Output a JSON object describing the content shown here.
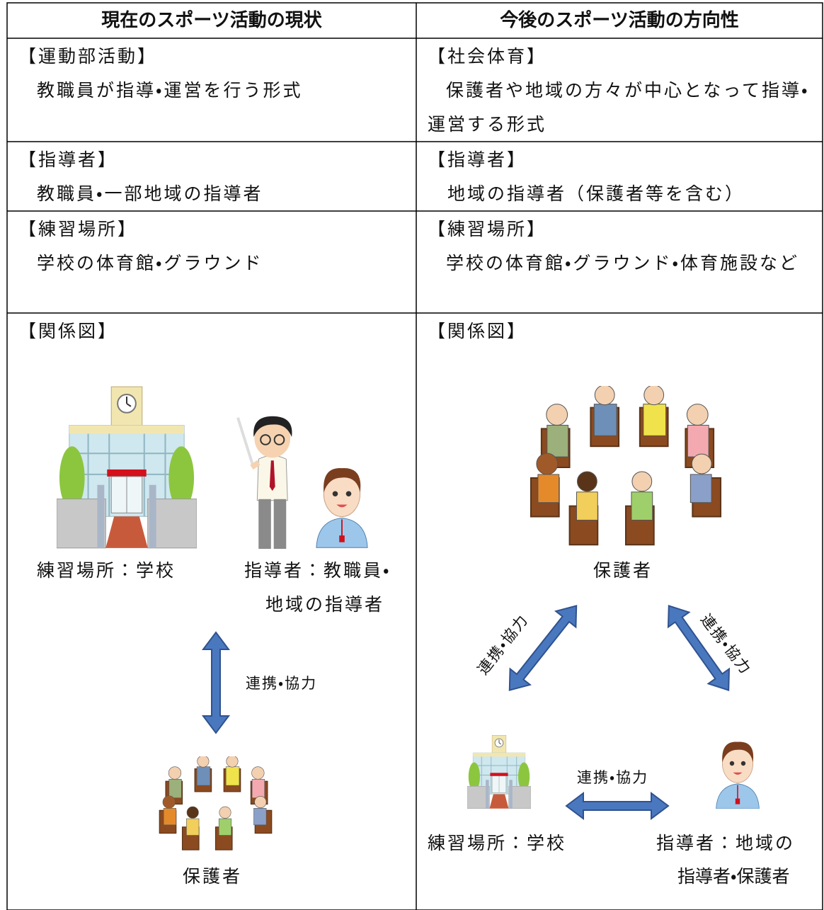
{
  "table": {
    "headers": [
      "現在のスポーツ活動の現状",
      "今後のスポーツ活動の方向性"
    ],
    "rows": [
      [
        {
          "heading": "【運動部活動】",
          "text": "教職員が指導・運営を行う形式"
        },
        {
          "heading": "【社会体育】",
          "text": "保護者や地域の方々が中心となって指導・運営する形式"
        }
      ],
      [
        {
          "heading": "【指導者】",
          "text": "教職員・一部地域の指導者"
        },
        {
          "heading": "【指導者】",
          "text": "地域の指導者（保護者等を含む）"
        }
      ],
      [
        {
          "heading": "【練習場所】",
          "text": "学校の体育館・グラウンド"
        },
        {
          "heading": "【練習場所】",
          "text": "学校の体育館・グラウンド・体育施設など"
        }
      ],
      [
        {
          "heading": "【関係図】"
        },
        {
          "heading": "【関係図】"
        }
      ]
    ]
  },
  "diagrams": {
    "current": {
      "place": "練習場所：学校",
      "coach": [
        "指導者：教職員・",
        "地域の指導者"
      ],
      "link": "連携・協力",
      "parents": "保護者"
    },
    "future": {
      "parents": "保護者",
      "links": [
        "連携・協力",
        "連携・協力",
        "連携・協力"
      ],
      "place": "練習場所：学校",
      "coach": [
        "指導者：地域の",
        "指導者・保護者"
      ]
    }
  }
}
